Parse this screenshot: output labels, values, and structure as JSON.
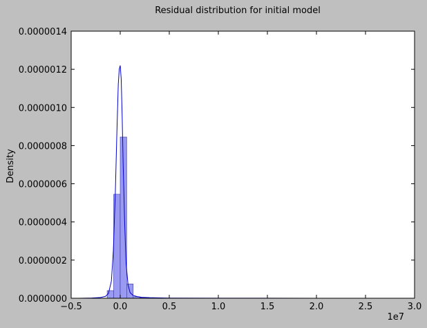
{
  "chart_data": {
    "type": "bar",
    "title": "Residual distribution for initial model",
    "xlabel": "",
    "ylabel": "Density",
    "x_offset_label": "1e7",
    "xlim": [
      -0.5,
      3.0
    ],
    "ylim": [
      0,
      1.4e-06
    ],
    "grid": false,
    "x_ticks": [
      -0.5,
      0.0,
      0.5,
      1.0,
      1.5,
      2.0,
      2.5,
      3.0
    ],
    "x_tick_labels": [
      "−0.5",
      "0.0",
      "0.5",
      "1.0",
      "1.5",
      "2.0",
      "2.5",
      "3.0"
    ],
    "y_ticks": [
      0,
      2e-07,
      4e-07,
      6e-07,
      8e-07,
      1e-06,
      1.2e-06,
      1.4e-06
    ],
    "y_tick_labels": [
      "0.0000000",
      "0.0000002",
      "0.0000004",
      "0.0000006",
      "0.0000008",
      "0.0000010",
      "0.0000012",
      "0.0000014"
    ],
    "histogram": {
      "bin_width": 0.066,
      "bins": [
        {
          "x0": -0.133,
          "x1": -0.067,
          "value": 4e-08
        },
        {
          "x0": -0.067,
          "x1": 0.0,
          "value": 5.45e-07
        },
        {
          "x0": 0.0,
          "x1": 0.066,
          "value": 8.45e-07
        },
        {
          "x0": 0.066,
          "x1": 0.132,
          "value": 7.5e-08
        },
        {
          "x0": 0.132,
          "x1": 0.198,
          "value": 8e-09
        },
        {
          "x0": 0.198,
          "x1": 0.264,
          "value": 3e-09
        }
      ]
    },
    "kde": {
      "x": [
        -0.42,
        -0.3,
        -0.2,
        -0.15,
        -0.12,
        -0.09,
        -0.07,
        -0.05,
        -0.035,
        -0.02,
        -0.01,
        0.0,
        0.01,
        0.02,
        0.03,
        0.045,
        0.06,
        0.08,
        0.1,
        0.13,
        0.17,
        0.22,
        0.3,
        0.5,
        1.0,
        2.0,
        2.85
      ],
      "y": [
        0,
        1e-09,
        4e-09,
        1e-08,
        2.5e-08,
        9e-08,
        2.5e-07,
        5.5e-07,
        8.5e-07,
        1.12e-06,
        1.2e-06,
        1.22e-06,
        1.15e-06,
        9.5e-07,
        7e-07,
        4e-07,
        1.8e-07,
        7e-08,
        3e-08,
        1.5e-08,
        9e-09,
        5e-09,
        3e-09,
        1e-09,
        5e-10,
        2e-10,
        0
      ]
    },
    "colors": {
      "bar_fill": "#9a9af3",
      "bar_stroke": "#3a3aa0",
      "kde_line": "#0000cc",
      "plot_bg": "#ffffff",
      "figure_bg": "#bfbfbf"
    }
  }
}
